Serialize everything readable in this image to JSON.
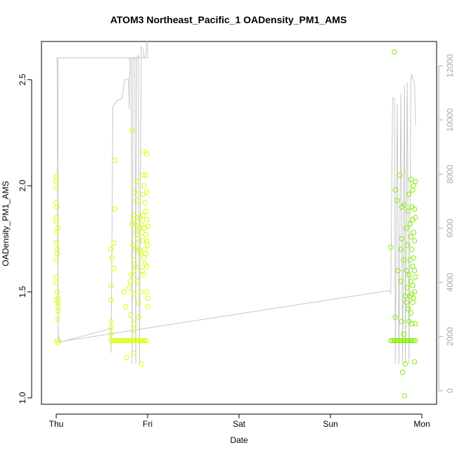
{
  "chart_data": {
    "type": "scatter",
    "title": "ATOM3 Northeast_Pacific_1 OADensity_PM1_AMS",
    "xlabel": "Date",
    "ylabel": "OADensity_PM1_AMS",
    "x_ticks": [
      "Thu",
      "Fri",
      "Sat",
      "Sun",
      "Mon"
    ],
    "x_range_days": [
      -0.1,
      4.1
    ],
    "y_ticks": [
      "1.0",
      "1.5",
      "2.0",
      "2.5"
    ],
    "y_range": [
      0.97,
      2.68
    ],
    "y2_ticks": [
      "0",
      "2000",
      "4000",
      "6000",
      "8000",
      "10000",
      "12000"
    ],
    "y2_range": [
      -500,
      12900
    ],
    "grid": false,
    "legend": "none",
    "colors": {
      "points_early": "#d8ff00",
      "points_late": "#86ee00",
      "altitude_line": "#c8c8c8",
      "axis": "#000000",
      "secondary_axis": "#aaaaaa"
    },
    "series": [
      {
        "values": [
          {
            "day": 0.0,
            "y": 2.04
          },
          {
            "day": 0.0,
            "y": 2.02
          },
          {
            "day": 0.0,
            "y": 1.99
          },
          {
            "day": 0.0,
            "y": 1.92
          },
          {
            "day": 0.0,
            "y": 1.85
          },
          {
            "day": 0.0,
            "y": 1.83
          },
          {
            "day": 0.0,
            "y": 1.78
          },
          {
            "day": 0.0,
            "y": 1.73
          },
          {
            "day": 0.01,
            "y": 1.7
          },
          {
            "day": 0.01,
            "y": 1.68
          },
          {
            "day": 0.0,
            "y": 1.57
          },
          {
            "day": 0.0,
            "y": 1.54
          },
          {
            "day": 0.01,
            "y": 1.5
          },
          {
            "day": 0.02,
            "y": 1.47
          },
          {
            "day": 0.02,
            "y": 1.45
          },
          {
            "day": 0.0,
            "y": 1.46
          },
          {
            "day": 0.02,
            "y": 1.43
          },
          {
            "day": 0.02,
            "y": 1.41
          },
          {
            "day": 0.02,
            "y": 1.37
          },
          {
            "day": 0.01,
            "y": 1.27
          },
          {
            "day": 0.02,
            "y": 1.26
          },
          {
            "day": 0.01,
            "y": 1.9
          },
          {
            "day": 0.02,
            "y": 1.8
          },
          {
            "day": 0.0,
            "y": 1.65
          },
          {
            "day": 0.6,
            "y": 1.27
          },
          {
            "day": 0.6,
            "y": 1.3
          },
          {
            "day": 0.6,
            "y": 1.33
          },
          {
            "day": 0.6,
            "y": 1.36
          },
          {
            "day": 0.6,
            "y": 1.46
          },
          {
            "day": 0.6,
            "y": 1.53
          },
          {
            "day": 0.6,
            "y": 1.7
          },
          {
            "day": 0.61,
            "y": 1.66
          },
          {
            "day": 0.63,
            "y": 1.73
          },
          {
            "day": 0.63,
            "y": 1.61
          },
          {
            "day": 0.64,
            "y": 2.12
          },
          {
            "day": 0.64,
            "y": 1.89
          },
          {
            "day": 0.74,
            "y": 1.5
          },
          {
            "day": 0.76,
            "y": 1.43
          },
          {
            "day": 0.77,
            "y": 1.19
          },
          {
            "day": 0.8,
            "y": 1.52
          },
          {
            "day": 0.81,
            "y": 1.39
          },
          {
            "day": 0.81,
            "y": 1.55
          },
          {
            "day": 0.82,
            "y": 1.58
          },
          {
            "day": 0.83,
            "y": 2.26
          },
          {
            "day": 0.83,
            "y": 1.82
          },
          {
            "day": 0.84,
            "y": 1.86
          },
          {
            "day": 0.84,
            "y": 1.72
          },
          {
            "day": 0.85,
            "y": 1.65
          },
          {
            "day": 0.85,
            "y": 1.6
          },
          {
            "day": 0.85,
            "y": 1.49
          },
          {
            "day": 0.85,
            "y": 1.35
          },
          {
            "day": 0.85,
            "y": 1.32
          },
          {
            "day": 0.85,
            "y": 1.21
          },
          {
            "day": 0.86,
            "y": 1.97
          },
          {
            "day": 0.86,
            "y": 1.82
          },
          {
            "day": 0.87,
            "y": 1.78
          },
          {
            "day": 0.87,
            "y": 1.7
          },
          {
            "day": 0.87,
            "y": 1.62
          },
          {
            "day": 0.88,
            "y": 2.02
          },
          {
            "day": 0.88,
            "y": 1.93
          },
          {
            "day": 0.89,
            "y": 1.85
          },
          {
            "day": 0.89,
            "y": 1.75
          },
          {
            "day": 0.89,
            "y": 1.55
          },
          {
            "day": 0.9,
            "y": 1.45
          },
          {
            "day": 0.9,
            "y": 1.38
          },
          {
            "day": 0.91,
            "y": 1.8
          },
          {
            "day": 0.91,
            "y": 1.7
          },
          {
            "day": 0.92,
            "y": 1.85
          },
          {
            "day": 0.92,
            "y": 1.68
          },
          {
            "day": 0.93,
            "y": 1.82
          },
          {
            "day": 0.93,
            "y": 1.5
          },
          {
            "day": 0.93,
            "y": 1.16
          },
          {
            "day": 0.94,
            "y": 1.78
          },
          {
            "day": 0.94,
            "y": 1.6
          },
          {
            "day": 0.95,
            "y": 2.05
          },
          {
            "day": 0.95,
            "y": 1.96
          },
          {
            "day": 0.95,
            "y": 1.86
          },
          {
            "day": 0.95,
            "y": 1.74
          },
          {
            "day": 0.96,
            "y": 2.16
          },
          {
            "day": 0.96,
            "y": 2.0
          },
          {
            "day": 0.96,
            "y": 1.66
          },
          {
            "day": 0.96,
            "y": 1.58
          },
          {
            "day": 0.97,
            "y": 1.92
          },
          {
            "day": 0.97,
            "y": 1.8
          },
          {
            "day": 0.97,
            "y": 1.7
          },
          {
            "day": 0.97,
            "y": 1.63
          },
          {
            "day": 0.98,
            "y": 2.05
          },
          {
            "day": 0.98,
            "y": 1.88
          },
          {
            "day": 0.98,
            "y": 1.77
          },
          {
            "day": 0.98,
            "y": 1.68
          },
          {
            "day": 0.99,
            "y": 2.15
          },
          {
            "day": 0.99,
            "y": 1.97
          },
          {
            "day": 0.99,
            "y": 1.84
          },
          {
            "day": 0.99,
            "y": 1.74
          },
          {
            "day": 0.99,
            "y": 1.62
          },
          {
            "day": 0.99,
            "y": 1.5
          },
          {
            "day": 1.0,
            "y": 1.81
          },
          {
            "day": 1.0,
            "y": 1.72
          },
          {
            "day": 1.0,
            "y": 1.47
          },
          {
            "day": 1.0,
            "y": 1.43
          }
        ]
      },
      {
        "values": [
          {
            "day": 3.66,
            "y": 1.71
          },
          {
            "day": 3.7,
            "y": 2.63
          },
          {
            "day": 3.71,
            "y": 1.98
          },
          {
            "day": 3.71,
            "y": 1.38
          },
          {
            "day": 3.73,
            "y": 1.93
          },
          {
            "day": 3.74,
            "y": 1.6
          },
          {
            "day": 3.76,
            "y": 2.05
          },
          {
            "day": 3.77,
            "y": 1.7
          },
          {
            "day": 3.77,
            "y": 1.55
          },
          {
            "day": 3.78,
            "y": 1.9
          },
          {
            "day": 3.78,
            "y": 1.75
          },
          {
            "day": 3.78,
            "y": 1.36
          },
          {
            "day": 3.79,
            "y": 1.12
          },
          {
            "day": 3.8,
            "y": 1.65
          },
          {
            "day": 3.8,
            "y": 1.3
          },
          {
            "day": 3.81,
            "y": 1.91
          },
          {
            "day": 3.81,
            "y": 1.01
          },
          {
            "day": 3.82,
            "y": 1.48
          },
          {
            "day": 3.82,
            "y": 1.16
          },
          {
            "day": 3.83,
            "y": 1.8
          },
          {
            "day": 3.83,
            "y": 1.6
          },
          {
            "day": 3.83,
            "y": 1.45
          },
          {
            "day": 3.84,
            "y": 1.72
          },
          {
            "day": 3.84,
            "y": 1.52
          },
          {
            "day": 3.85,
            "y": 1.88
          },
          {
            "day": 3.85,
            "y": 1.42
          },
          {
            "day": 3.86,
            "y": 1.96
          },
          {
            "day": 3.86,
            "y": 1.58
          },
          {
            "day": 3.86,
            "y": 1.36
          },
          {
            "day": 3.87,
            "y": 1.82
          },
          {
            "day": 3.87,
            "y": 1.65
          },
          {
            "day": 3.87,
            "y": 1.48
          },
          {
            "day": 3.88,
            "y": 2.03
          },
          {
            "day": 3.88,
            "y": 1.76
          },
          {
            "day": 3.88,
            "y": 1.55
          },
          {
            "day": 3.88,
            "y": 1.4
          },
          {
            "day": 3.89,
            "y": 1.9
          },
          {
            "day": 3.89,
            "y": 1.7
          },
          {
            "day": 3.89,
            "y": 1.49
          },
          {
            "day": 3.89,
            "y": 1.35
          },
          {
            "day": 3.9,
            "y": 1.98
          },
          {
            "day": 3.9,
            "y": 1.84
          },
          {
            "day": 3.9,
            "y": 1.62
          },
          {
            "day": 3.9,
            "y": 1.53
          },
          {
            "day": 3.9,
            "y": 1.45
          },
          {
            "day": 3.91,
            "y": 2.0
          },
          {
            "day": 3.91,
            "y": 1.78
          },
          {
            "day": 3.91,
            "y": 1.66
          },
          {
            "day": 3.91,
            "y": 1.47
          },
          {
            "day": 3.92,
            "y": 1.89
          },
          {
            "day": 3.92,
            "y": 1.74
          },
          {
            "day": 3.92,
            "y": 1.6
          },
          {
            "day": 3.92,
            "y": 1.5
          },
          {
            "day": 3.92,
            "y": 1.17
          },
          {
            "day": 3.93,
            "y": 2.02
          },
          {
            "day": 3.93,
            "y": 1.85
          },
          {
            "day": 3.93,
            "y": 1.57
          },
          {
            "day": 3.93,
            "y": 1.35
          }
        ]
      }
    ],
    "baseline_clusters": [
      {
        "y": 1.27,
        "day_from": 0.6,
        "day_to": 1.0
      },
      {
        "y": 1.27,
        "day_from": 3.66,
        "day_to": 3.93
      }
    ],
    "altitude_line": [
      [
        0.0,
        12300
      ],
      [
        0.01,
        12200
      ],
      [
        0.02,
        2100
      ],
      [
        0.05,
        1800
      ],
      [
        0.6,
        2300
      ],
      [
        0.6,
        1400
      ],
      [
        0.62,
        10500
      ],
      [
        0.66,
        10700
      ],
      [
        0.72,
        10800
      ],
      [
        0.75,
        11500
      ],
      [
        0.79,
        11500
      ],
      [
        0.8,
        10400
      ],
      [
        0.8,
        11500
      ],
      [
        0.81,
        12000
      ],
      [
        0.8,
        12270
      ],
      [
        0.82,
        12270
      ],
      [
        0.83,
        1000
      ],
      [
        0.84,
        12270
      ],
      [
        0.86,
        12270
      ],
      [
        0.87,
        1000
      ],
      [
        0.88,
        12300
      ],
      [
        0.9,
        12400
      ],
      [
        0.91,
        1000
      ],
      [
        0.93,
        12700
      ],
      [
        0.95,
        12600
      ],
      [
        0.96,
        12300
      ],
      [
        0.98,
        12400
      ],
      [
        0.99,
        12950
      ],
      [
        1.0,
        12800
      ],
      [
        1.0,
        12300
      ],
      [
        0.99,
        12300
      ],
      [
        0.02,
        12300
      ],
      [
        0.02,
        1800
      ],
      [
        3.64,
        3700
      ],
      [
        3.66,
        3600
      ],
      [
        3.68,
        10800
      ],
      [
        3.7,
        10800
      ],
      [
        3.71,
        1000
      ],
      [
        3.73,
        10600
      ],
      [
        3.75,
        1000
      ],
      [
        3.77,
        11000
      ],
      [
        3.79,
        1000
      ],
      [
        3.81,
        11300
      ],
      [
        3.82,
        1000
      ],
      [
        3.84,
        11400
      ],
      [
        3.86,
        1000
      ],
      [
        3.88,
        11500
      ],
      [
        3.89,
        11700
      ],
      [
        3.9,
        11500
      ],
      [
        3.92,
        11400
      ],
      [
        3.93,
        9800
      ]
    ]
  }
}
